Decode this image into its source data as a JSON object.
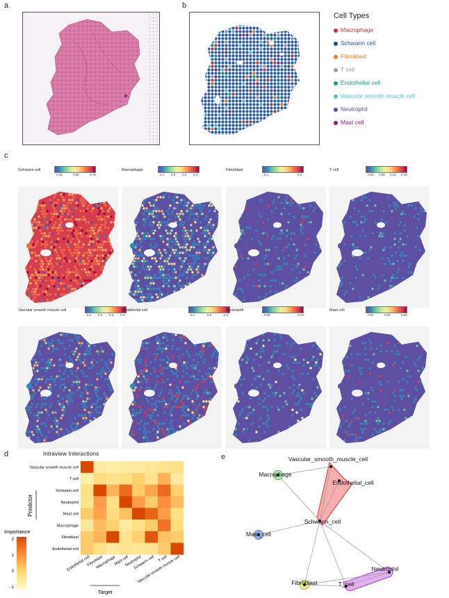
{
  "panels": {
    "a": "a",
    "b": "b",
    "c": "c",
    "d": "d",
    "e": "e"
  },
  "legend": {
    "title": "Cell Types",
    "items": [
      {
        "label": "Macrophage",
        "color": "#d0322d"
      },
      {
        "label": "Schwann cell",
        "color": "#1d4f8c"
      },
      {
        "label": "Fibroblast",
        "color": "#e67e22"
      },
      {
        "label": "T cell",
        "color": "#a39ab0"
      },
      {
        "label": "Endothelial cell",
        "color": "#1a9a80"
      },
      {
        "label": "Vascular smooth muscle cell",
        "color": "#5bbcd6"
      },
      {
        "label": "Neutrophil",
        "color": "#5a4fa8"
      },
      {
        "label": "Mast cell",
        "color": "#8e1e72"
      }
    ]
  },
  "maps": [
    {
      "label": "Schwann cell",
      "ticks": [
        "0.25",
        "0.50",
        "0.75"
      ]
    },
    {
      "label": "Macrophage",
      "ticks": [
        "0.1",
        "0.2",
        "0.3",
        "0.4"
      ]
    },
    {
      "label": "Fibroblast",
      "ticks": [
        "0.1",
        "0.2"
      ]
    },
    {
      "label": "T cell",
      "ticks": [
        "0.04",
        "0.08",
        "0.12",
        "0.16"
      ]
    },
    {
      "label": "Vascular smooth muscle cell",
      "ticks": [
        "0.1",
        "0.2",
        "0.3",
        "0.4"
      ]
    },
    {
      "label": "Endothelial cell",
      "ticks": [
        "0.1",
        "0.2",
        "0.3"
      ]
    },
    {
      "label": "Neutrophil",
      "ticks": [
        "0.05",
        "0.10"
      ]
    },
    {
      "label": "Mast cell",
      "ticks": [
        "0.02",
        "0.04",
        "0.06"
      ]
    }
  ],
  "chart_data": {
    "type": "heatmap",
    "title": "Intraview Interactions",
    "ylabel": "Predictor",
    "xlabel": "Target",
    "rows": [
      "Vascular smooth muscle cell",
      "T cell",
      "Schwann cell",
      "Neutrophil",
      "Mast cell",
      "Macrophage",
      "Fibroblast",
      "Endothelial cell"
    ],
    "columns": [
      "Endothelial cell",
      "Fibroblast",
      "Macrophage",
      "Mast cell",
      "Neutrophil",
      "Schwann cell",
      "T cell",
      "Vascular smooth muscle cell"
    ],
    "values": [
      [
        2.0,
        -0.5,
        -0.6,
        -0.5,
        -0.5,
        -0.4,
        -0.3,
        -0.2
      ],
      [
        -0.6,
        -0.1,
        -0.3,
        -0.2,
        0.1,
        -0.3,
        0.5,
        -0.5
      ],
      [
        -0.2,
        2.0,
        0.5,
        1.5,
        0.2,
        0.7,
        1.5,
        0.1
      ],
      [
        -0.3,
        0.8,
        -0.2,
        2.0,
        0.8,
        0.2,
        1.0,
        0.4
      ],
      [
        0.2,
        0.7,
        -0.1,
        0.3,
        2.0,
        1.6,
        0.8,
        -0.2
      ],
      [
        -0.4,
        0.4,
        0.1,
        -0.5,
        -0.2,
        0.2,
        1.4,
        -0.1
      ],
      [
        0.2,
        0.5,
        2.0,
        -0.3,
        0.1,
        1.8,
        0.3,
        0.2
      ],
      [
        0.2,
        -0.2,
        -0.5,
        -0.3,
        -0.4,
        -0.3,
        0.2,
        2.0
      ]
    ],
    "colorbar": {
      "label": "Importance",
      "ticks": [
        "2",
        "1",
        "0",
        "−1"
      ],
      "range": [
        -1,
        2
      ]
    }
  },
  "network": {
    "nodes": [
      {
        "label": "Vascular_smooth_muscle_cell"
      },
      {
        "label": "Endothelial_cell"
      },
      {
        "label": "Macrophage"
      },
      {
        "label": "Schwann_cell"
      },
      {
        "label": "Mast_cell"
      },
      {
        "label": "Neutrophil"
      },
      {
        "label": "Fibroblast"
      },
      {
        "label": "T_cell"
      }
    ]
  }
}
